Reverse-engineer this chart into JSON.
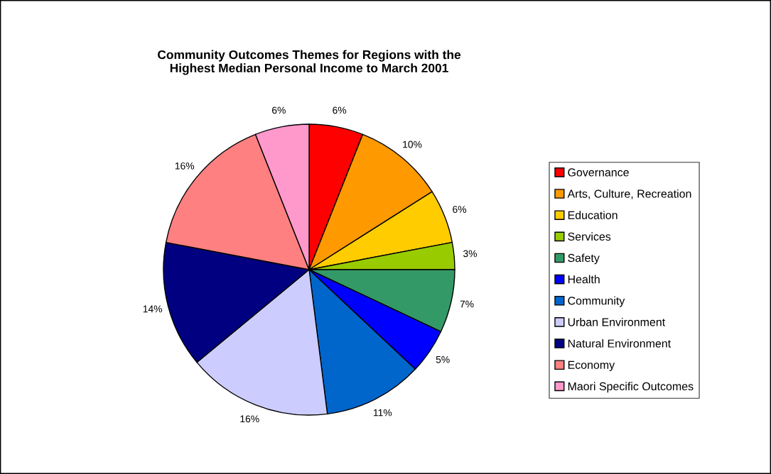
{
  "chart_data": {
    "type": "pie",
    "title": "Community Outcomes Themes for Regions with the\nHighest Median Personal Income to March 2001",
    "categories": [
      "Governance",
      "Arts, Culture, Recreation",
      "Education",
      "Services",
      "Safety",
      "Health",
      "Community",
      "Urban Environment",
      "Natural Environment",
      "Economy",
      "Maori Specific Outcomes"
    ],
    "values": [
      6,
      10,
      6,
      3,
      7,
      5,
      11,
      16,
      14,
      16,
      6
    ],
    "value_labels": [
      "6%",
      "10%",
      "6%",
      "3%",
      "7%",
      "5%",
      "11%",
      "16%",
      "14%",
      "16%",
      "6%"
    ],
    "colors": [
      "#ff0000",
      "#ff9900",
      "#ffcc00",
      "#99cc00",
      "#339966",
      "#0000ff",
      "#0066cc",
      "#ccccff",
      "#000080",
      "#ff8080",
      "#ff99cc"
    ],
    "legend": "right"
  }
}
